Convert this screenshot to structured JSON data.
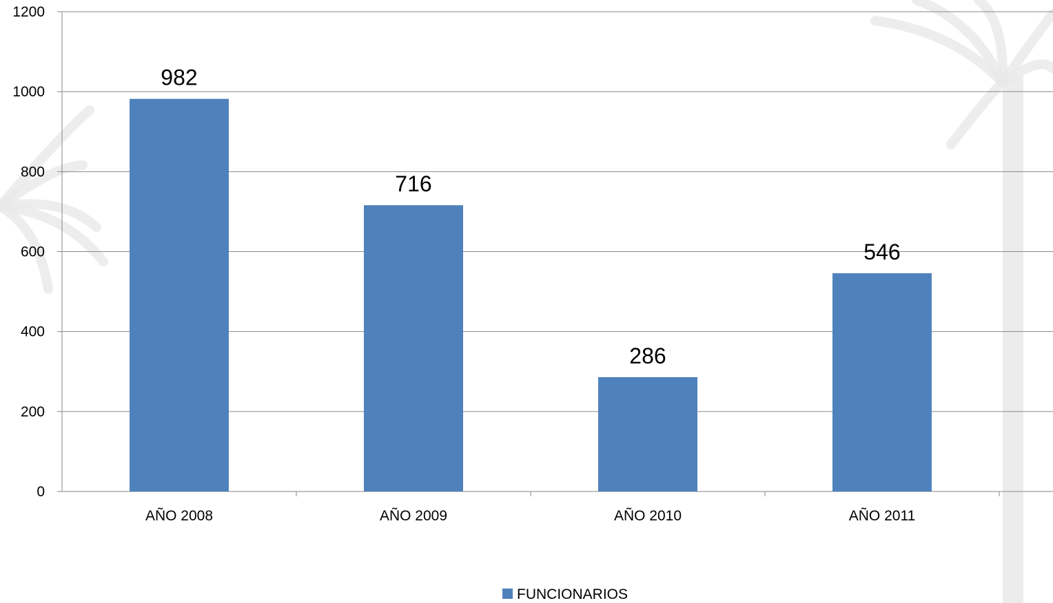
{
  "chart_data": {
    "type": "bar",
    "categories": [
      "AÑO 2008",
      "AÑO 2009",
      "AÑO 2010",
      "AÑO 2011"
    ],
    "series": [
      {
        "name": "FUNCIONARIOS",
        "values": [
          982,
          716,
          286,
          546
        ],
        "color": "#4f81bd"
      }
    ],
    "ylim": [
      0,
      1200
    ],
    "yticks": [
      0,
      200,
      400,
      600,
      800,
      1000,
      1200
    ],
    "grid": true,
    "legend_position": "bottom",
    "data_labels": true
  },
  "colors": {
    "bar": "#4f81bd",
    "grid": "#868686",
    "axis": "#868686",
    "background_palm": "#e9e9e9"
  }
}
